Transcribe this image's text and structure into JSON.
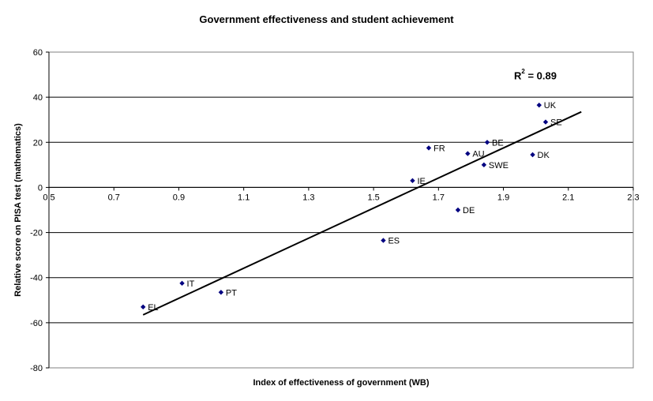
{
  "chart_data": {
    "type": "scatter",
    "title": "Government effectiveness and student achievement",
    "xlabel": "Index of effectiveness of government (WB)",
    "ylabel": "Relative score on PISA test (mathematics)",
    "xlim": [
      0.5,
      2.3
    ],
    "ylim": [
      -80,
      60
    ],
    "xticks": [
      "0.5",
      "0.7",
      "0.9",
      "1.1",
      "1.3",
      "1.5",
      "1.7",
      "1.9",
      "2.1",
      "2.3"
    ],
    "yticks": [
      "60",
      "40",
      "20",
      "0",
      "-20",
      "-40",
      "-60",
      "-80"
    ],
    "grid": "horizontal",
    "legend": "none",
    "marker_color": "#000080",
    "trendline": {
      "x": [
        0.79,
        2.14
      ],
      "y": [
        -56.5,
        33.5
      ],
      "r2_prefix": "R",
      "r2_exp": "2",
      "r2_value": " = 0.89"
    },
    "points": [
      {
        "label": "EL",
        "x": 0.79,
        "y": -53
      },
      {
        "label": "IT",
        "x": 0.91,
        "y": -42.5
      },
      {
        "label": "PT",
        "x": 1.03,
        "y": -46.5
      },
      {
        "label": "ES",
        "x": 1.53,
        "y": -23.5
      },
      {
        "label": "IE",
        "x": 1.62,
        "y": 3
      },
      {
        "label": "FR",
        "x": 1.67,
        "y": 17.5
      },
      {
        "label": "DE",
        "x": 1.76,
        "y": -10
      },
      {
        "label": "AU",
        "x": 1.79,
        "y": 15
      },
      {
        "label": "SWE",
        "x": 1.84,
        "y": 10
      },
      {
        "label": "BE",
        "x": 1.85,
        "y": 20
      },
      {
        "label": "DK",
        "x": 1.99,
        "y": 14.5
      },
      {
        "label": "UK",
        "x": 2.01,
        "y": 36.5
      },
      {
        "label": "SE",
        "x": 2.03,
        "y": 29
      }
    ]
  }
}
